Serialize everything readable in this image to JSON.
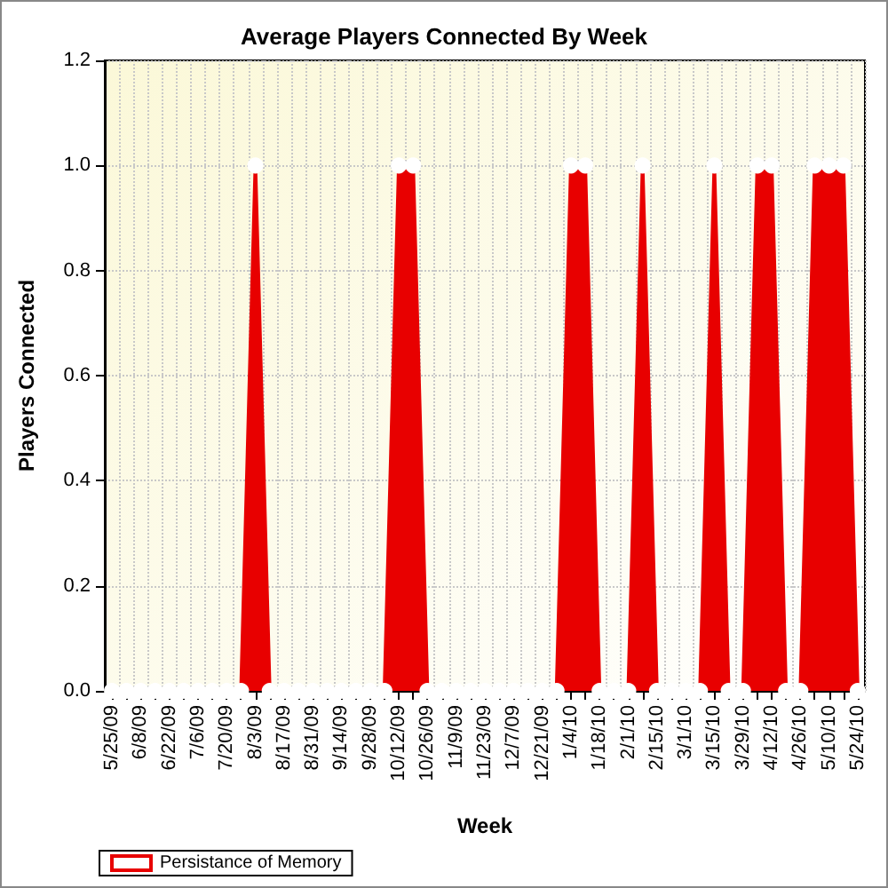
{
  "chart_data": {
    "type": "area",
    "title": "Average Players Connected By Week",
    "xlabel": "Week",
    "ylabel": "Players Connected",
    "categories": [
      "5/25/09",
      null,
      "6/8/09",
      null,
      "6/22/09",
      null,
      "7/6/09",
      null,
      "7/20/09",
      null,
      "8/3/09",
      null,
      "8/17/09",
      null,
      "8/31/09",
      null,
      "9/14/09",
      null,
      "9/28/09",
      null,
      "10/12/09",
      null,
      "10/26/09",
      null,
      "11/9/09",
      null,
      "11/23/09",
      null,
      "12/7/09",
      null,
      "12/21/09",
      null,
      "1/4/10",
      null,
      "1/18/10",
      null,
      "2/1/10",
      null,
      "2/15/10",
      null,
      "3/1/10",
      null,
      "3/15/10",
      null,
      "3/29/10",
      null,
      "4/12/10",
      null,
      "4/26/10",
      null,
      "5/10/10",
      null,
      "5/24/10"
    ],
    "series": [
      {
        "name": "Persistance of Memory",
        "color": "#e80000",
        "values": [
          0,
          0,
          0,
          0,
          0,
          0,
          0,
          0,
          0,
          0,
          1,
          0,
          0,
          0,
          0,
          0,
          0,
          0,
          0,
          0,
          1,
          1,
          0,
          0,
          0,
          0,
          0,
          0,
          0,
          0,
          0,
          0,
          1,
          1,
          0,
          0,
          0,
          1,
          0,
          0,
          0,
          0,
          1,
          0,
          0,
          1,
          1,
          0,
          0,
          1,
          1,
          1,
          0
        ]
      }
    ],
    "ylim": [
      0,
      1.2
    ],
    "yticks": [
      {
        "value": 0,
        "label": "0.0"
      },
      {
        "value": 0.2,
        "label": "0.2"
      },
      {
        "value": 0.4,
        "label": "0.4"
      },
      {
        "value": 0.6,
        "label": "0.6"
      },
      {
        "value": 0.8,
        "label": "0.8"
      },
      {
        "value": 1,
        "label": "1.0"
      },
      {
        "value": 1.2,
        "label": "1.2"
      }
    ],
    "grid": true,
    "legend": "bottom left",
    "marker": "circle"
  }
}
